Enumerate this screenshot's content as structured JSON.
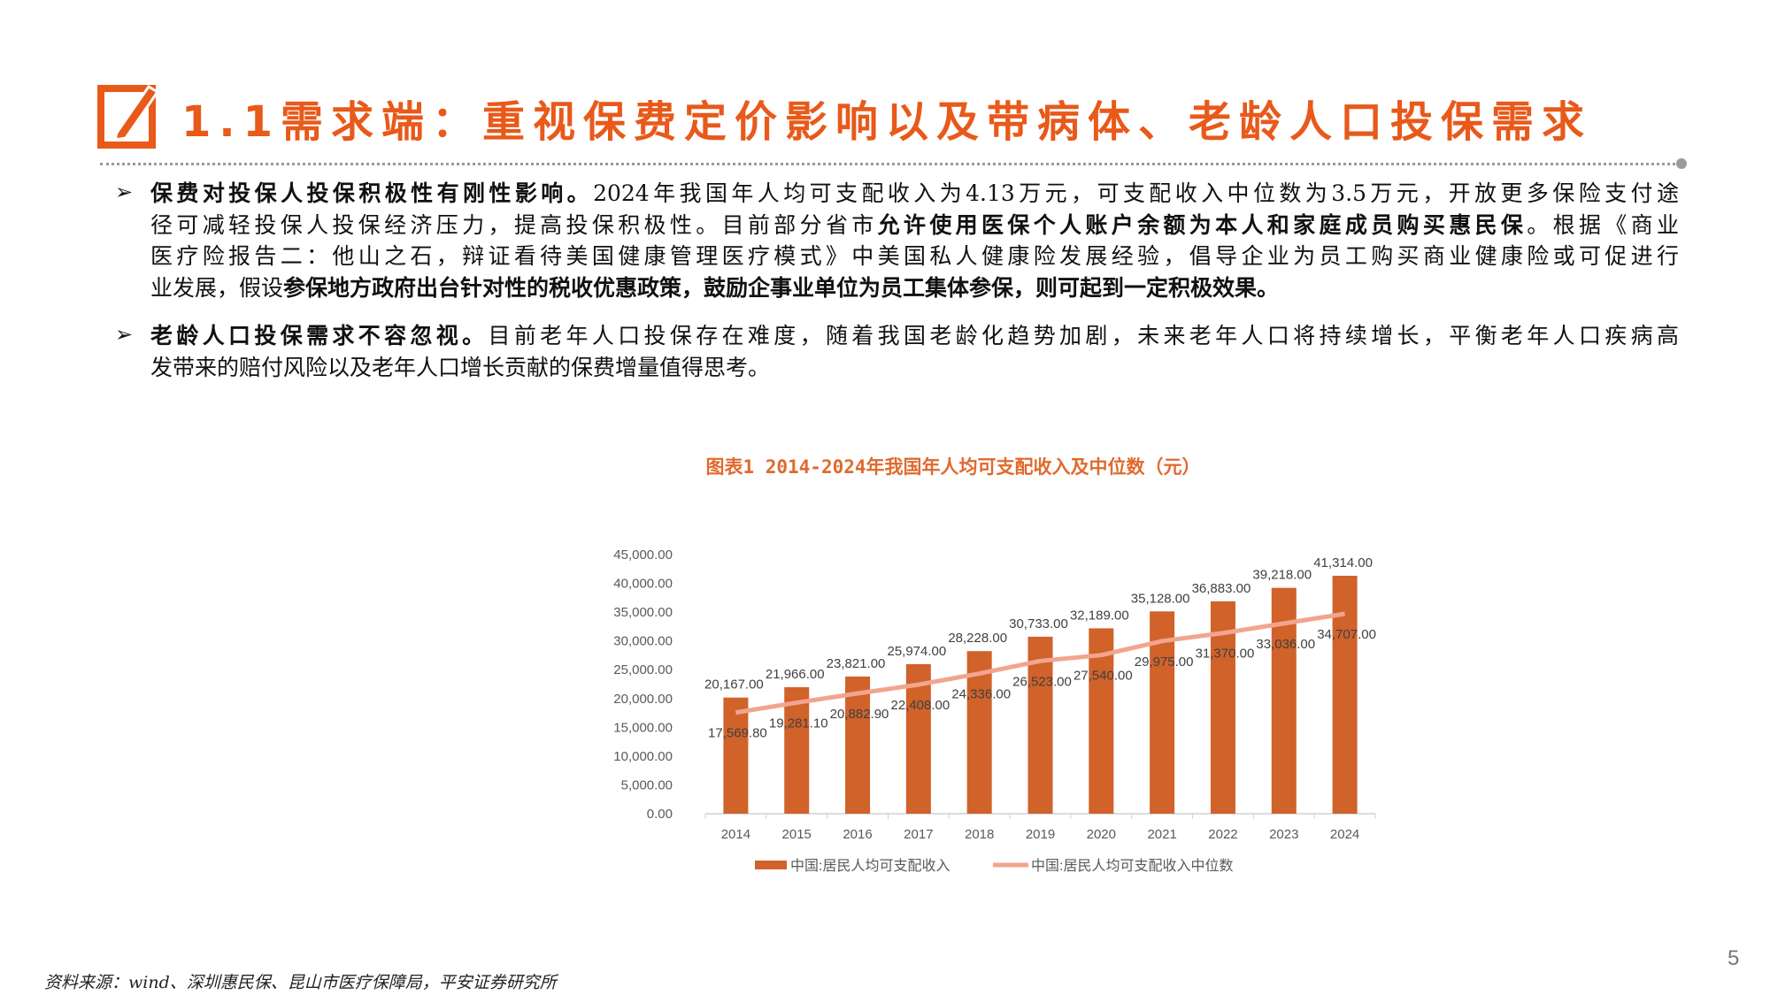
{
  "header": {
    "title": "1.1需求端：重视保费定价影响以及带病体、老龄人口投保需求",
    "icon": "edit-pencil-icon",
    "accent_color": "#E8591A"
  },
  "paragraphs": [
    {
      "lines": [
        [
          {
            "t": "保费对投保人投保积极性有刚性影响。",
            "b": true
          },
          {
            "t": "2024年我国年人均可支配收入为4.13万元，可支配收入中位数为3.5万元，开放更多保险支付途",
            "b": false
          }
        ],
        [
          {
            "t": "径可减轻投保人投保经济压力，提高投保积极性。目前部分省市",
            "b": false
          },
          {
            "t": "允许使用医保个人账户余额为本人和家庭成员购买惠民保",
            "b": true
          },
          {
            "t": "。根据《商业",
            "b": false
          }
        ],
        [
          {
            "t": "医疗险报告二：他山之石，辩证看待美国健康管理医疗模式》中美国私人健康险发展经验，倡导企业为员工购买商业健康险或可促进行",
            "b": false
          }
        ],
        [
          {
            "t": "业发展，假设",
            "b": false
          },
          {
            "t": "参保地方政府出台针对性的税收优惠政策，鼓励企事业单位为员工集体参保，则可起到一定积极效果。",
            "b": true
          }
        ]
      ]
    },
    {
      "lines": [
        [
          {
            "t": "老龄人口投保需求不容忽视。",
            "b": true
          },
          {
            "t": "目前老年人口投保存在难度，随着我国老龄化趋势加剧，未来老年人口将持续增长，平衡老年人口疾病高",
            "b": false
          }
        ],
        [
          {
            "t": "发带来的赔付风险以及老年人口增长贡献的保费增量值得思考。",
            "b": false
          }
        ]
      ]
    }
  ],
  "bullet_symbol": "➢",
  "chart_data": {
    "type": "bar",
    "title": "图表1 2014-2024年我国年人均可支配收入及中位数（元）",
    "categories": [
      "2014",
      "2015",
      "2016",
      "2017",
      "2018",
      "2019",
      "2020",
      "2021",
      "2022",
      "2023",
      "2024"
    ],
    "series": [
      {
        "name": "中国:居民人均可支配收入",
        "type": "bar",
        "color": "#D0622A",
        "values": [
          20167.0,
          21966.0,
          23821.0,
          25974.0,
          28228.0,
          30733.0,
          32189.0,
          35128.0,
          36883.0,
          39218.0,
          41314.0
        ],
        "labels": [
          "20,167.00",
          "21,966.00",
          "23,821.00",
          "25,974.00",
          "28,228.00",
          "30,733.00",
          "32,189.00",
          "35,128.00",
          "36,883.00",
          "39,218.00",
          "41,314.00"
        ]
      },
      {
        "name": "中国:居民人均可支配收入中位数",
        "type": "line",
        "color": "#F2A58E",
        "values": [
          17569.8,
          19281.1,
          20882.9,
          22408.0,
          24336.0,
          26523.0,
          27540.0,
          29975.0,
          31370.0,
          33036.0,
          34707.0
        ],
        "labels": [
          "17,569.80",
          "19,281.10",
          "20,882.90",
          "22,408.00",
          "24,336.00",
          "26,523.00",
          "27,540.00",
          "29,975.00",
          "31,370.00",
          "33,036.00",
          "34,707.00"
        ]
      }
    ],
    "ylim": [
      0,
      45000
    ],
    "yticks": [
      "0.00",
      "5,000.00",
      "10,000.00",
      "15,000.00",
      "20,000.00",
      "25,000.00",
      "30,000.00",
      "35,000.00",
      "40,000.00",
      "45,000.00"
    ],
    "grid": false,
    "legend_position": "bottom"
  },
  "footer": {
    "source": "资料来源：wind、深圳惠民保、昆山市医疗保障局，平安证券研究所"
  },
  "page_number": "5"
}
